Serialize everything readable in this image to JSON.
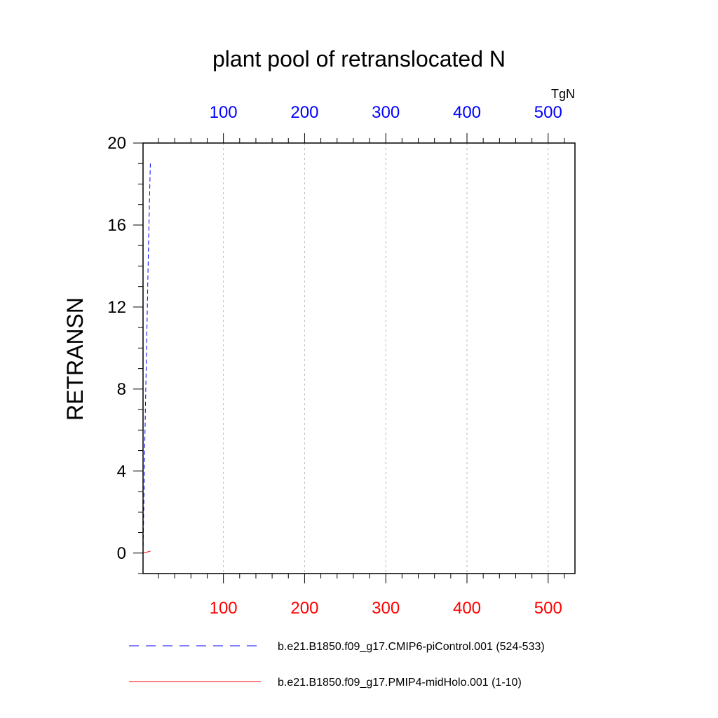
{
  "chart_data": {
    "type": "line",
    "title": "plant pool of retranslocated N",
    "ylabel": "RETRANSN",
    "units": "TgN",
    "ylim": [
      -1,
      20
    ],
    "xlim": [
      1,
      533
    ],
    "yticks": [
      0,
      4,
      8,
      12,
      16,
      20
    ],
    "xticks": [
      100,
      200,
      300,
      400,
      500
    ],
    "grid": "vertical dashed at x ticks",
    "top_axis_color": "#0000ff",
    "bottom_axis_color": "#ff0000",
    "series": [
      {
        "name": "b.e21.B1850.f09_g17.CMIP6-piControl.001 (524-533)",
        "axis": "top",
        "color": "#0000ff",
        "style": "dashed",
        "x": [
          1,
          2,
          3,
          4,
          5,
          6,
          7,
          8,
          9,
          10
        ],
        "y": [
          0.0,
          2.5,
          5.0,
          7.2,
          9.3,
          11.3,
          13.5,
          15.5,
          17.3,
          19.0
        ]
      },
      {
        "name": "b.e21.B1850.f09_g17.PMIP4-midHolo.001 (1-10)",
        "axis": "bottom",
        "color": "#ff0000",
        "style": "solid",
        "x": [
          1,
          2,
          3,
          4,
          5,
          6,
          7,
          8,
          9,
          10
        ],
        "y": [
          0.0,
          0.01,
          0.02,
          0.03,
          0.04,
          0.05,
          0.06,
          0.07,
          0.08,
          0.1
        ]
      }
    ]
  }
}
